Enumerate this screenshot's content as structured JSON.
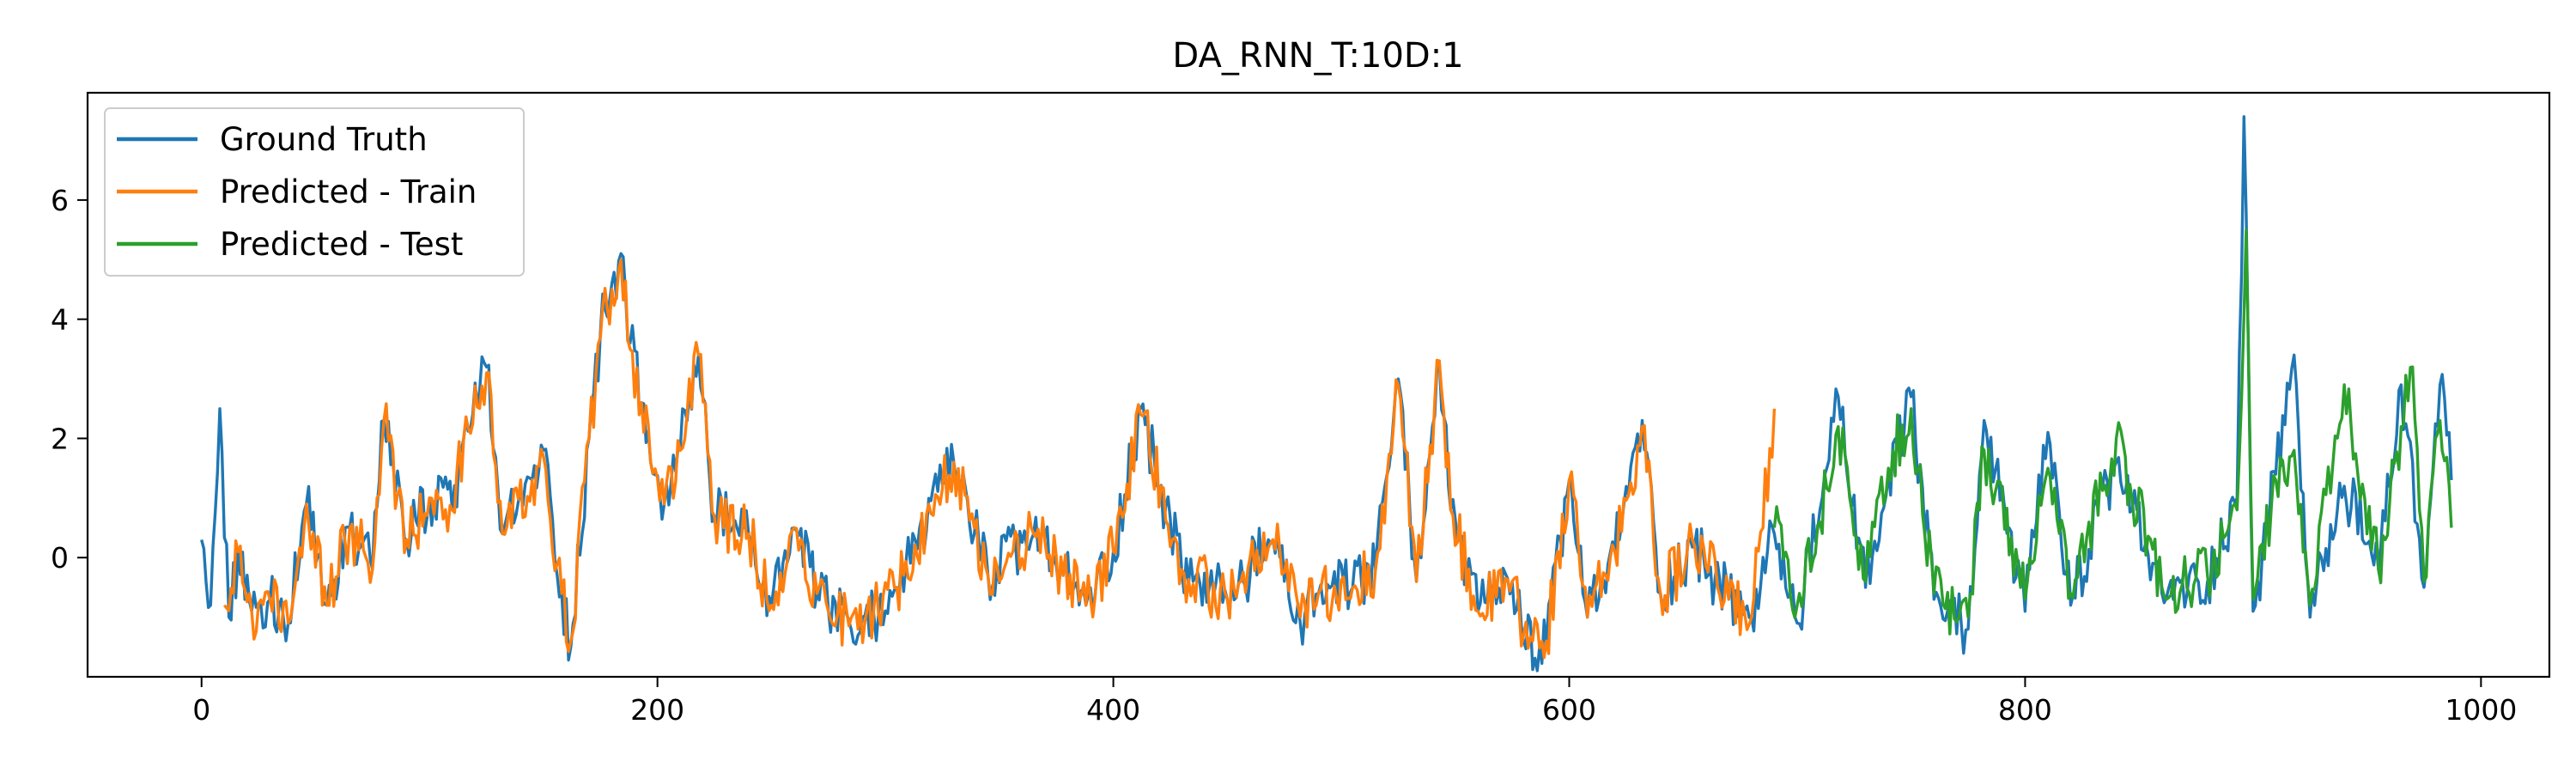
{
  "chart_data": {
    "type": "line",
    "title": "DA_RNN_T:10D:1",
    "xlabel": "",
    "ylabel": "",
    "xlim": [
      -50,
      1030
    ],
    "ylim": [
      -2.0,
      7.8
    ],
    "xticks": [
      0,
      200,
      400,
      600,
      800,
      1000
    ],
    "yticks": [
      0,
      2,
      4,
      6
    ],
    "grid": false,
    "legend_position": "top-left",
    "series": [
      {
        "name": "Ground Truth",
        "color": "#1f77b4",
        "x_range": [
          0,
          987
        ],
        "anchors": [
          [
            0,
            0.3
          ],
          [
            4,
            -0.8
          ],
          [
            8,
            2.5
          ],
          [
            12,
            -1.0
          ],
          [
            16,
            0.1
          ],
          [
            22,
            -0.9
          ],
          [
            30,
            -0.7
          ],
          [
            38,
            -1.1
          ],
          [
            46,
            0.9
          ],
          [
            55,
            -0.8
          ],
          [
            65,
            0.5
          ],
          [
            75,
            -0.2
          ],
          [
            80,
            2.3
          ],
          [
            90,
            0.3
          ],
          [
            100,
            1.0
          ],
          [
            110,
            0.8
          ],
          [
            115,
            2.0
          ],
          [
            125,
            3.2
          ],
          [
            132,
            0.4
          ],
          [
            145,
            1.3
          ],
          [
            150,
            1.8
          ],
          [
            158,
            -0.6
          ],
          [
            162,
            -1.5
          ],
          [
            170,
            2.0
          ],
          [
            175,
            3.8
          ],
          [
            180,
            4.6
          ],
          [
            184,
            5.1
          ],
          [
            188,
            3.6
          ],
          [
            193,
            2.6
          ],
          [
            197,
            1.6
          ],
          [
            203,
            0.9
          ],
          [
            210,
            1.8
          ],
          [
            218,
            3.4
          ],
          [
            225,
            0.7
          ],
          [
            240,
            0.4
          ],
          [
            250,
            -0.8
          ],
          [
            260,
            0.5
          ],
          [
            270,
            -0.6
          ],
          [
            288,
            -1.3
          ],
          [
            305,
            -0.5
          ],
          [
            330,
            1.6
          ],
          [
            345,
            -0.3
          ],
          [
            365,
            0.4
          ],
          [
            388,
            -0.8
          ],
          [
            400,
            0.1
          ],
          [
            412,
            2.5
          ],
          [
            430,
            -0.2
          ],
          [
            450,
            -0.7
          ],
          [
            470,
            0.3
          ],
          [
            482,
            -1.1
          ],
          [
            490,
            -0.6
          ],
          [
            505,
            -0.5
          ],
          [
            515,
            -0.2
          ],
          [
            525,
            3.0
          ],
          [
            533,
            -0.4
          ],
          [
            543,
            3.3
          ],
          [
            548,
            0.8
          ],
          [
            560,
            -0.9
          ],
          [
            575,
            -0.4
          ],
          [
            580,
            -1.4
          ],
          [
            590,
            -1.5
          ],
          [
            600,
            1.3
          ],
          [
            608,
            -1.0
          ],
          [
            620,
            0.1
          ],
          [
            632,
            2.3
          ],
          [
            640,
            -0.6
          ],
          [
            655,
            0.2
          ],
          [
            670,
            -0.7
          ],
          [
            680,
            -1.0
          ],
          [
            690,
            0.4
          ],
          [
            700,
            -1.1
          ],
          [
            710,
            0.8
          ],
          [
            718,
            2.7
          ],
          [
            730,
            -0.5
          ],
          [
            750,
            2.7
          ],
          [
            760,
            -0.7
          ],
          [
            775,
            -1.2
          ],
          [
            782,
            2.3
          ],
          [
            800,
            -0.9
          ],
          [
            810,
            2.1
          ],
          [
            820,
            -0.8
          ],
          [
            840,
            1.6
          ],
          [
            860,
            -0.6
          ],
          [
            880,
            -0.4
          ],
          [
            893,
            1.0
          ],
          [
            896,
            7.4
          ],
          [
            900,
            -0.9
          ],
          [
            910,
            1.4
          ],
          [
            918,
            3.4
          ],
          [
            925,
            -1.0
          ],
          [
            940,
            1.2
          ],
          [
            955,
            -0.2
          ],
          [
            965,
            2.9
          ],
          [
            975,
            -0.5
          ],
          [
            982,
            2.9
          ],
          [
            987,
            1.3
          ]
        ],
        "noise_amplitude": 0.5
      },
      {
        "name": "Predicted - Train",
        "color": "#ff7f0e",
        "x_range": [
          10,
          690
        ],
        "anchors": [
          [
            10,
            -0.8
          ],
          [
            16,
            0.1
          ],
          [
            22,
            -0.9
          ],
          [
            30,
            -0.7
          ],
          [
            38,
            -1.1
          ],
          [
            46,
            0.9
          ],
          [
            55,
            -0.8
          ],
          [
            65,
            0.5
          ],
          [
            75,
            -0.2
          ],
          [
            80,
            2.3
          ],
          [
            90,
            0.3
          ],
          [
            100,
            1.0
          ],
          [
            110,
            0.8
          ],
          [
            115,
            2.0
          ],
          [
            125,
            3.1
          ],
          [
            132,
            0.4
          ],
          [
            145,
            1.3
          ],
          [
            150,
            1.7
          ],
          [
            158,
            -0.6
          ],
          [
            162,
            -1.4
          ],
          [
            170,
            2.0
          ],
          [
            175,
            3.7
          ],
          [
            180,
            4.5
          ],
          [
            184,
            5.0
          ],
          [
            188,
            3.5
          ],
          [
            193,
            2.6
          ],
          [
            197,
            1.6
          ],
          [
            203,
            0.9
          ],
          [
            210,
            1.8
          ],
          [
            218,
            3.4
          ],
          [
            225,
            0.7
          ],
          [
            240,
            0.4
          ],
          [
            250,
            -0.8
          ],
          [
            260,
            0.5
          ],
          [
            270,
            -0.6
          ],
          [
            288,
            -1.2
          ],
          [
            305,
            -0.5
          ],
          [
            330,
            1.6
          ],
          [
            345,
            -0.3
          ],
          [
            365,
            0.4
          ],
          [
            388,
            -0.8
          ],
          [
            400,
            0.1
          ],
          [
            412,
            2.4
          ],
          [
            430,
            -0.2
          ],
          [
            450,
            -0.7
          ],
          [
            470,
            0.3
          ],
          [
            482,
            -1.0
          ],
          [
            490,
            -0.6
          ],
          [
            505,
            -0.5
          ],
          [
            515,
            -0.2
          ],
          [
            525,
            2.9
          ],
          [
            533,
            -0.4
          ],
          [
            543,
            3.3
          ],
          [
            548,
            0.8
          ],
          [
            560,
            -0.9
          ],
          [
            575,
            -0.4
          ],
          [
            580,
            -1.3
          ],
          [
            590,
            -1.4
          ],
          [
            600,
            1.3
          ],
          [
            608,
            -1.0
          ],
          [
            620,
            0.1
          ],
          [
            632,
            2.2
          ],
          [
            640,
            -0.6
          ],
          [
            655,
            0.2
          ],
          [
            670,
            -0.7
          ],
          [
            680,
            -1.0
          ],
          [
            690,
            2.5
          ]
        ],
        "noise_amplitude": 0.5
      },
      {
        "name": "Predicted - Test",
        "color": "#2ca02c",
        "x_range": [
          690,
          987
        ],
        "anchors": [
          [
            690,
            0.5
          ],
          [
            700,
            -0.8
          ],
          [
            710,
            0.6
          ],
          [
            718,
            2.2
          ],
          [
            730,
            -0.4
          ],
          [
            740,
            1.5
          ],
          [
            750,
            2.5
          ],
          [
            760,
            -0.6
          ],
          [
            775,
            -1.0
          ],
          [
            782,
            1.8
          ],
          [
            800,
            -0.7
          ],
          [
            810,
            1.5
          ],
          [
            820,
            -0.6
          ],
          [
            840,
            2.0
          ],
          [
            860,
            -0.5
          ],
          [
            880,
            -0.3
          ],
          [
            893,
            0.8
          ],
          [
            897,
            5.5
          ],
          [
            900,
            -0.7
          ],
          [
            910,
            1.3
          ],
          [
            918,
            1.8
          ],
          [
            925,
            -0.8
          ],
          [
            940,
            2.9
          ],
          [
            955,
            -0.2
          ],
          [
            965,
            2.2
          ],
          [
            970,
            3.2
          ],
          [
            975,
            -0.4
          ],
          [
            982,
            2.3
          ],
          [
            987,
            0.5
          ]
        ],
        "noise_amplitude": 0.5
      }
    ]
  }
}
